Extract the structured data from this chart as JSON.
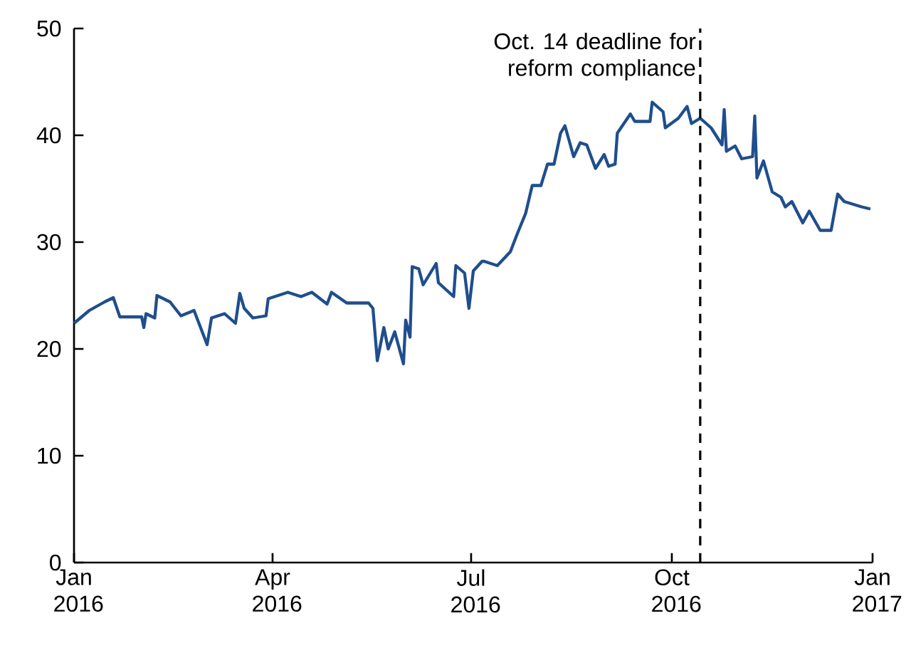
{
  "chart_data": {
    "type": "line",
    "x": [
      "2016-01-01",
      "2016-01-08",
      "2016-01-15",
      "2016-01-19",
      "2016-01-22",
      "2016-02-01",
      "2016-02-02",
      "2016-02-03",
      "2016-02-07",
      "2016-02-08",
      "2016-02-14",
      "2016-02-19",
      "2016-02-25",
      "2016-03-02",
      "2016-03-04",
      "2016-03-10",
      "2016-03-15",
      "2016-03-17",
      "2016-03-19",
      "2016-03-23",
      "2016-03-29",
      "2016-03-30",
      "2016-04-08",
      "2016-04-14",
      "2016-04-19",
      "2016-04-26",
      "2016-04-28",
      "2016-05-05",
      "2016-05-15",
      "2016-05-17",
      "2016-05-19",
      "2016-05-22",
      "2016-05-24",
      "2016-05-27",
      "2016-05-31",
      "2016-06-01",
      "2016-06-03",
      "2016-06-04",
      "2016-06-07",
      "2016-06-09",
      "2016-06-15",
      "2016-06-16",
      "2016-06-23",
      "2016-06-24",
      "2016-06-28",
      "2016-06-30",
      "2016-07-02",
      "2016-07-06",
      "2016-07-07",
      "2016-07-13",
      "2016-07-19",
      "2016-07-22",
      "2016-07-26",
      "2016-07-29",
      "2016-08-02",
      "2016-08-05",
      "2016-08-08",
      "2016-08-11",
      "2016-08-13",
      "2016-08-17",
      "2016-08-20",
      "2016-08-23",
      "2016-08-27",
      "2016-08-31",
      "2016-09-02",
      "2016-09-05",
      "2016-09-06",
      "2016-09-12",
      "2016-09-14",
      "2016-09-21",
      "2016-09-22",
      "2016-09-27",
      "2016-09-28",
      "2016-10-04",
      "2016-10-08",
      "2016-10-10",
      "2016-10-14",
      "2016-10-19",
      "2016-10-24",
      "2016-10-25",
      "2016-10-26",
      "2016-10-30",
      "2016-11-02",
      "2016-11-07",
      "2016-11-08",
      "2016-11-09",
      "2016-11-12",
      "2016-11-16",
      "2016-11-20",
      "2016-11-22",
      "2016-11-25",
      "2016-11-30",
      "2016-12-03",
      "2016-12-08",
      "2016-12-13",
      "2016-12-16",
      "2016-12-19",
      "2016-12-27",
      "2016-12-31"
    ],
    "series": [
      {
        "color": "#1f4e8c",
        "values": [
          22.4,
          23.6,
          24.4,
          24.8,
          23.0,
          23.0,
          22.0,
          23.3,
          22.9,
          25.0,
          24.4,
          23.1,
          23.6,
          20.4,
          22.9,
          23.3,
          22.4,
          25.2,
          23.8,
          22.9,
          23.1,
          24.7,
          25.3,
          24.9,
          25.3,
          24.2,
          25.3,
          24.3,
          24.3,
          23.8,
          18.9,
          22.0,
          20.0,
          21.6,
          18.6,
          22.7,
          21.1,
          27.7,
          27.5,
          26.0,
          28.0,
          26.2,
          24.9,
          27.8,
          27.1,
          23.8,
          27.3,
          28.2,
          28.2,
          27.8,
          29.1,
          30.7,
          32.7,
          35.3,
          35.3,
          37.3,
          37.3,
          40.2,
          40.9,
          38.0,
          39.3,
          39.1,
          36.9,
          38.2,
          37.1,
          37.3,
          40.2,
          42.0,
          41.3,
          41.3,
          43.1,
          42.2,
          40.7,
          41.6,
          42.7,
          41.1,
          41.6,
          40.7,
          39.1,
          42.4,
          38.5,
          39.0,
          37.8,
          38.0,
          41.8,
          36.0,
          37.6,
          34.7,
          34.2,
          33.3,
          33.8,
          31.8,
          32.9,
          31.1,
          31.1,
          34.5,
          33.8,
          33.3,
          33.1
        ]
      }
    ],
    "xlim": [
      "2016-01-01",
      "2017-01-01"
    ],
    "xticks": [
      {
        "value": "2016-01-01",
        "label": "Jan 2016"
      },
      {
        "value": "2016-04-01",
        "label": "Apr 2016"
      },
      {
        "value": "2016-07-01",
        "label": "Jul 2016"
      },
      {
        "value": "2016-10-01",
        "label": "Oct 2016"
      },
      {
        "value": "2017-01-01",
        "label": "Jan 2017"
      }
    ],
    "ylim": [
      0,
      50
    ],
    "yticks": [
      0,
      10,
      20,
      30,
      40,
      50
    ],
    "ref_lines": [
      {
        "axis": "x",
        "value": "2016-10-14",
        "label": "Oct. 14 deadline for reform compliance",
        "color": "#000000",
        "line_style": "dashed"
      }
    ],
    "marker": "none",
    "line_style": "solid"
  }
}
